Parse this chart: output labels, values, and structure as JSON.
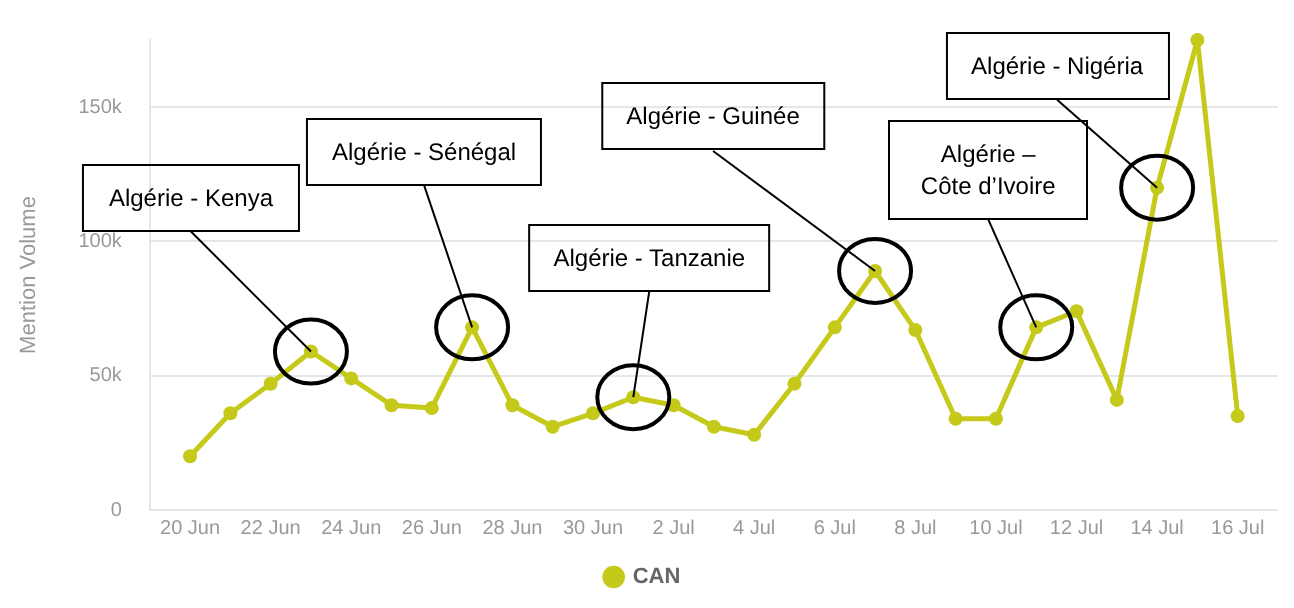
{
  "chart_data": {
    "type": "line",
    "ylabel": "Mention Volume",
    "x": [
      "--06-20",
      "--06-21",
      "--06-22",
      "--06-23",
      "--06-24",
      "--06-25",
      "--06-26",
      "--06-27",
      "--06-28",
      "--06-29",
      "--06-30",
      "--07-01",
      "--07-02",
      "--07-03",
      "--07-04",
      "--07-05",
      "--07-06",
      "--07-07",
      "--07-08",
      "--07-09",
      "--07-10",
      "--07-11",
      "--07-12",
      "--07-13",
      "--07-14",
      "--07-15",
      "--07-16"
    ],
    "series": [
      {
        "name": "CAN",
        "color": "#c5c91a",
        "values": [
          20000,
          36000,
          47000,
          59000,
          49000,
          39000,
          38000,
          68000,
          39000,
          31000,
          36000,
          42000,
          39000,
          31000,
          28000,
          47000,
          68000,
          89000,
          67000,
          34000,
          34000,
          68000,
          74000,
          41000,
          120000,
          175000,
          35000
        ]
      }
    ],
    "xlim": [
      "--06-19",
      "--07-17"
    ],
    "xticks": [
      {
        "value": "--06-20",
        "label": "20 Jun"
      },
      {
        "value": "--06-22",
        "label": "22 Jun"
      },
      {
        "value": "--06-24",
        "label": "24 Jun"
      },
      {
        "value": "--06-26",
        "label": "26 Jun"
      },
      {
        "value": "--06-28",
        "label": "28 Jun"
      },
      {
        "value": "--06-30",
        "label": "30 Jun"
      },
      {
        "value": "--07-02",
        "label": "2 Jul"
      },
      {
        "value": "--07-04",
        "label": "4 Jul"
      },
      {
        "value": "--07-06",
        "label": "6 Jul"
      },
      {
        "value": "--07-08",
        "label": "8 Jul"
      },
      {
        "value": "--07-10",
        "label": "10 Jul"
      },
      {
        "value": "--07-12",
        "label": "12 Jul"
      },
      {
        "value": "--07-14",
        "label": "14 Jul"
      },
      {
        "value": "--07-16",
        "label": "16 Jul"
      }
    ],
    "yticks": [
      0,
      {
        "value": 50000,
        "label": "50k"
      },
      {
        "value": 100000,
        "label": "100k"
      },
      {
        "value": 150000,
        "label": "150k"
      }
    ],
    "ylim": [
      0,
      175000
    ],
    "grid": "y",
    "legend": "bottom",
    "marker": "circle",
    "line_style": "solid",
    "annotations": [
      {
        "text": "Algérie - Kenya",
        "x": "--06-23",
        "y": 59000
      },
      {
        "text": "Algérie - Sénégal",
        "x": "--06-27",
        "y": 68000
      },
      {
        "text": "Algérie - Tanzanie",
        "x": "--07-01",
        "y": 42000
      },
      {
        "text": "Algérie - Guinée",
        "x": "--07-07",
        "y": 89000
      },
      {
        "text": "Algérie – Côte d’Ivoire",
        "x": "--07-11",
        "y": 68000
      },
      {
        "text": "Algérie - Nigéria",
        "x": "--07-14",
        "y": 120000
      }
    ]
  }
}
